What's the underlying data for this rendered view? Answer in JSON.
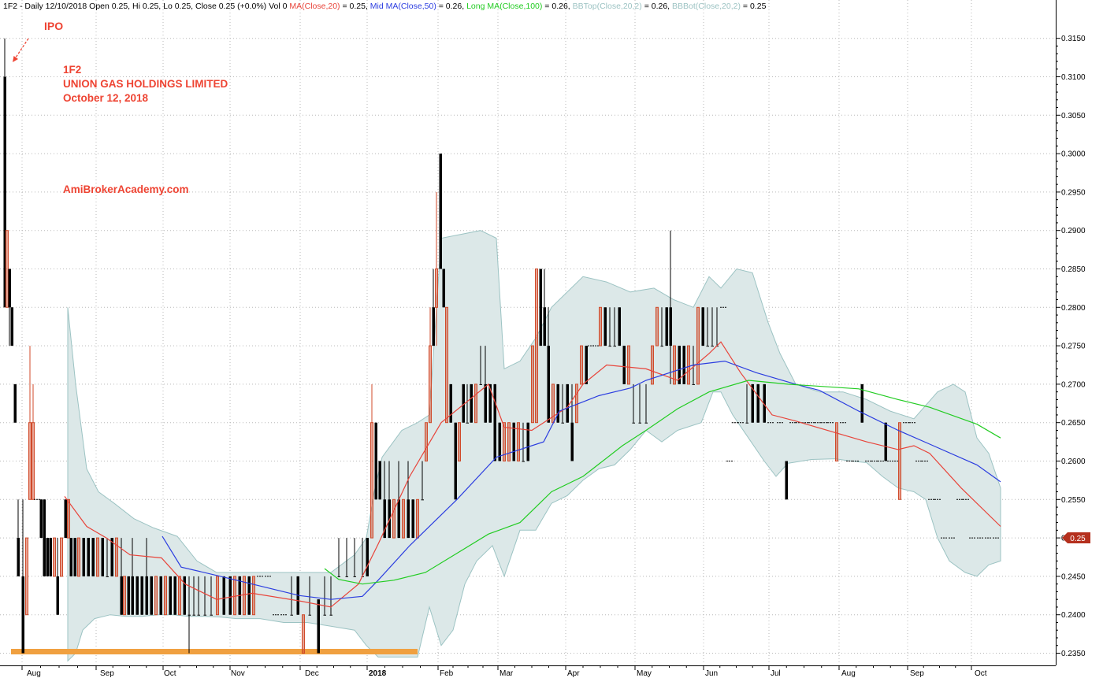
{
  "header": {
    "parts": [
      {
        "text": "1F2 - Daily 12/10/2018 Open 0.25, Hi 0.25, Lo 0.25, Close 0.25 (+0.0%) Vol 0 ",
        "color": "#000000"
      },
      {
        "text": "MA(Close,20)",
        "color": "#e8443a"
      },
      {
        "text": " = 0.25, ",
        "color": "#000000"
      },
      {
        "text": "Mid MA(Close,50)",
        "color": "#2b3de0"
      },
      {
        "text": " = 0.26, ",
        "color": "#000000"
      },
      {
        "text": "Long MA(Close,100)",
        "color": "#22cc22"
      },
      {
        "text": " = 0.26, ",
        "color": "#000000"
      },
      {
        "text": "BBTop(Close,20,2)",
        "color": "#9cc3c3"
      },
      {
        "text": " = 0.26, ",
        "color": "#000000"
      },
      {
        "text": "BBBot(Close,20,2)",
        "color": "#9cc3c3"
      },
      {
        "text": " = 0.25",
        "color": "#000000"
      }
    ]
  },
  "annotations": {
    "ipo": "IPO",
    "symbol": "1F2",
    "company": "UNION GAS HOLDINGS LIMITED",
    "date": "October 12, 2018",
    "website": "AmiBrokerAcademy.com"
  },
  "price_label": "0.25",
  "colors": {
    "ma20": "#e8443a",
    "ma50": "#2b3de0",
    "ma100": "#22cc22",
    "band_fill": "#dce8e8",
    "band_edge": "#9cc3c3",
    "bar_up": "#d04a2a",
    "bar_down": "#000000",
    "support": "#f0a040",
    "anno": "#ee4433",
    "price_tag": "#b5301e"
  },
  "chart_data": {
    "type": "line",
    "title": "1F2 - Daily",
    "y_axis": {
      "side": "right",
      "min": 0.2345,
      "max": 0.3185,
      "ticks": [
        "0.2350",
        "0.2400",
        "0.2450",
        "0.2500",
        "0.2550",
        "0.2600",
        "0.2650",
        "0.2700",
        "0.2750",
        "0.2800",
        "0.2850",
        "0.2900",
        "0.2950",
        "0.3000",
        "0.3050",
        "0.3100",
        "0.3150"
      ],
      "grid": "dotted"
    },
    "x_axis": {
      "labels": [
        "Aug",
        "Sep",
        "Oct",
        "Nov",
        "Dec",
        "2018",
        "Feb",
        "Mar",
        "Apr",
        "May",
        "Jun",
        "Jul",
        "Aug",
        "Sep",
        "Oct"
      ],
      "bold": [
        "2018"
      ],
      "grid": "dotted"
    },
    "series": [
      {
        "name": "MA(Close,20)",
        "color": "#e8443a",
        "data": [
          [
            "Aug",
            0.2554
          ],
          [
            "Aug",
            0.2515
          ],
          [
            "Sep",
            0.25
          ],
          [
            "Sep",
            0.2478
          ],
          [
            "Oct",
            0.2474
          ],
          [
            "Oct",
            0.244
          ],
          [
            "Nov",
            0.242
          ],
          [
            "Nov",
            0.2428
          ],
          [
            "Dec",
            0.2418
          ],
          [
            "Dec",
            0.241
          ],
          [
            "2018",
            0.244
          ],
          [
            "2018",
            0.2492
          ],
          [
            "Feb",
            0.258
          ],
          [
            "Feb",
            0.265
          ],
          [
            "Mar",
            0.27
          ],
          [
            "Mar",
            0.2644
          ],
          [
            "Mar",
            0.264
          ],
          [
            "Apr",
            0.267
          ],
          [
            "Apr",
            0.27
          ],
          [
            "Apr",
            0.2725
          ],
          [
            "May",
            0.272
          ],
          [
            "May",
            0.2705
          ],
          [
            "Jun",
            0.274
          ],
          [
            "Jun",
            0.2755
          ],
          [
            "Jun",
            0.2715
          ],
          [
            "Jul",
            0.266
          ],
          [
            "Jul",
            0.2652
          ],
          [
            "Aug",
            0.2625
          ],
          [
            "Aug",
            0.2615
          ],
          [
            "Sep",
            0.262
          ],
          [
            "Sep",
            0.261
          ],
          [
            "Oct",
            0.2565
          ],
          [
            "Oct",
            0.2515
          ]
        ]
      },
      {
        "name": "Mid MA(Close,50)",
        "color": "#2b3de0",
        "data": [
          [
            "Oct",
            0.2502
          ],
          [
            "Oct",
            0.2462
          ],
          [
            "Nov",
            0.245
          ],
          [
            "Nov",
            0.244
          ],
          [
            "Dec",
            0.2425
          ],
          [
            "Dec",
            0.242
          ],
          [
            "2018",
            0.2424
          ],
          [
            "2018",
            0.2445
          ],
          [
            "Feb",
            0.249
          ],
          [
            "Feb",
            0.255
          ],
          [
            "Mar",
            0.2605
          ],
          [
            "Mar",
            0.2625
          ],
          [
            "Apr",
            0.2665
          ],
          [
            "Apr",
            0.2685
          ],
          [
            "May",
            0.2695
          ],
          [
            "May",
            0.2705
          ],
          [
            "Jun",
            0.2725
          ],
          [
            "Jun",
            0.273
          ],
          [
            "Jul",
            0.2715
          ],
          [
            "Jul",
            0.27
          ],
          [
            "Aug",
            0.2692
          ],
          [
            "Aug",
            0.2665
          ],
          [
            "Sep",
            0.264
          ],
          [
            "Sep",
            0.2622
          ],
          [
            "Oct",
            0.2595
          ],
          [
            "Oct",
            0.2573
          ]
        ]
      },
      {
        "name": "Long MA(Close,100)",
        "color": "#22cc22",
        "data": [
          [
            "Dec",
            0.246
          ],
          [
            "Dec",
            0.2446
          ],
          [
            "2018",
            0.244
          ],
          [
            "2018",
            0.2445
          ],
          [
            "Feb",
            0.2455
          ],
          [
            "Feb",
            0.248
          ],
          [
            "Mar",
            0.2505
          ],
          [
            "Mar",
            0.252
          ],
          [
            "Apr",
            0.256
          ],
          [
            "Apr",
            0.258
          ],
          [
            "May",
            0.262
          ],
          [
            "May",
            0.264
          ],
          [
            "Jun",
            0.2668
          ],
          [
            "Jun",
            0.269
          ],
          [
            "Jul",
            0.2705
          ],
          [
            "Jul",
            0.27
          ],
          [
            "Aug",
            0.2696
          ],
          [
            "Aug",
            0.2694
          ],
          [
            "Sep",
            0.268
          ],
          [
            "Sep",
            0.267
          ],
          [
            "Oct",
            0.2648
          ],
          [
            "Oct",
            0.263
          ]
        ]
      }
    ]
  }
}
